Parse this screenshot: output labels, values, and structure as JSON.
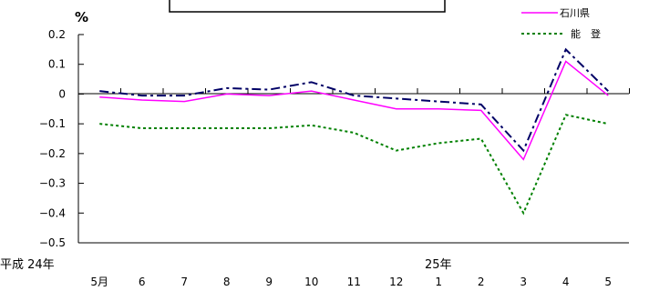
{
  "chart_data": {
    "type": "line",
    "unit_label": "%",
    "era_label": "平成 24年",
    "year_label": "25年",
    "categories": [
      "5月",
      "6",
      "7",
      "8",
      "9",
      "10",
      "11",
      "12",
      "1",
      "2",
      "3",
      "4",
      "5"
    ],
    "ylim": [
      -0.5,
      0.2
    ],
    "yticks": [
      "0.2",
      "0.1",
      "0",
      "−0.1",
      "−0.2",
      "−0.3",
      "−0.4",
      "−0.5"
    ],
    "series": [
      {
        "name": "石川県",
        "color": "#ff00ff",
        "style": "solid",
        "values": [
          -0.01,
          -0.02,
          -0.025,
          0.0,
          -0.005,
          0.01,
          -0.02,
          -0.05,
          -0.05,
          -0.055,
          -0.22,
          0.11,
          -0.005
        ]
      },
      {
        "name": "能　登",
        "color": "#008000",
        "style": "dotted",
        "values": [
          -0.1,
          -0.115,
          -0.115,
          -0.115,
          -0.115,
          -0.105,
          -0.13,
          -0.19,
          -0.165,
          -0.15,
          -0.4,
          -0.07,
          -0.1
        ]
      },
      {
        "name": "",
        "color": "#000066",
        "style": "dashdot",
        "values": [
          0.01,
          -0.005,
          -0.005,
          0.02,
          0.015,
          0.04,
          -0.005,
          -0.015,
          -0.025,
          -0.035,
          -0.19,
          0.15,
          0.01
        ]
      }
    ]
  }
}
